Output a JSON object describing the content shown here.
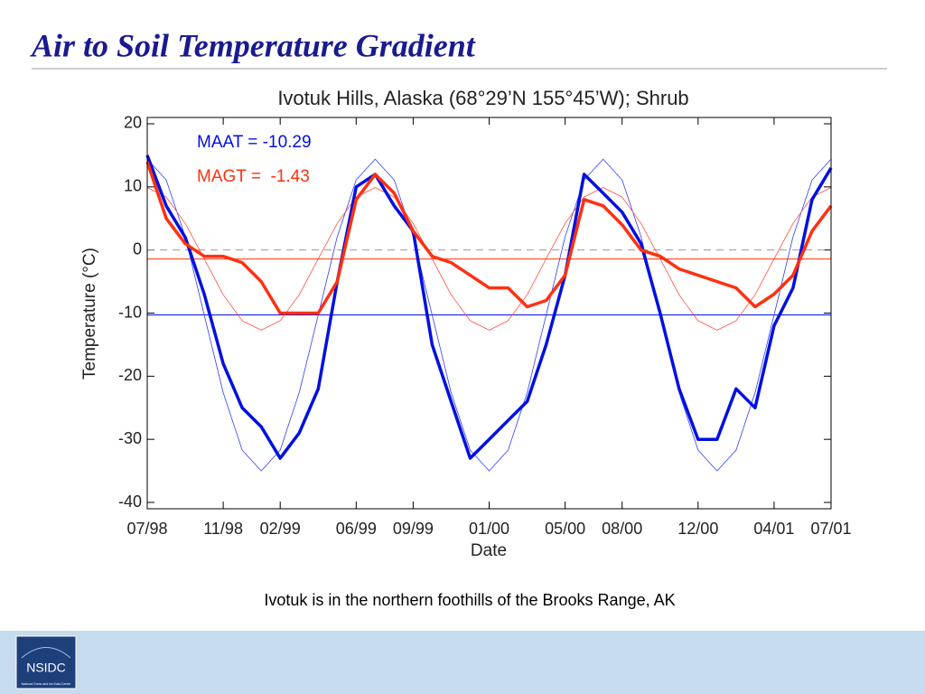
{
  "header": {
    "title": "Air to Soil Temperature Gradient"
  },
  "chart_data": {
    "type": "line",
    "title": "Ivotuk Hills, Alaska (68°29’N 155°45’W); Shrub",
    "x_label": "Date",
    "y_label": "Temperature (°C)",
    "x": [
      "1998-07",
      "1998-08",
      "1998-09",
      "1998-10",
      "1998-11",
      "1998-12",
      "1999-01",
      "1999-02",
      "1999-03",
      "1999-04",
      "1999-05",
      "1999-06",
      "1999-07",
      "1999-08",
      "1999-09",
      "1999-10",
      "1999-11",
      "1999-12",
      "2000-01",
      "2000-02",
      "2000-03",
      "2000-04",
      "2000-05",
      "2000-06",
      "2000-07",
      "2000-08",
      "2000-09",
      "2000-10",
      "2000-11",
      "2000-12",
      "2001-01",
      "2001-02",
      "2001-03",
      "2001-04",
      "2001-05",
      "2001-06",
      "2001-07"
    ],
    "xlim": [
      "1998-07",
      "2001-07"
    ],
    "xticks": [
      {
        "value": "1998-07",
        "label": "07/98"
      },
      {
        "value": "1998-11",
        "label": "11/98"
      },
      {
        "value": "1999-02",
        "label": "02/99"
      },
      {
        "value": "1999-06",
        "label": "06/99"
      },
      {
        "value": "1999-09",
        "label": "09/99"
      },
      {
        "value": "2000-01",
        "label": "01/00"
      },
      {
        "value": "2000-05",
        "label": "05/00"
      },
      {
        "value": "2000-08",
        "label": "08/00"
      },
      {
        "value": "2000-12",
        "label": "12/00"
      },
      {
        "value": "2001-04",
        "label": "04/01"
      },
      {
        "value": "2001-07",
        "label": "07/01"
      }
    ],
    "ylim": [
      -41,
      21
    ],
    "yticks": [
      -40,
      -30,
      -20,
      -10,
      0,
      10,
      20
    ],
    "zero_line": true,
    "series": [
      {
        "color": "#0010e0",
        "values": [
          15,
          7,
          2,
          -7,
          -18,
          -25,
          -28,
          -33,
          -29,
          -22,
          -5,
          10,
          12,
          7,
          3,
          -15,
          -24,
          -33,
          -30,
          -27,
          -24,
          -15,
          -4,
          12,
          9,
          6,
          1,
          -10,
          -22,
          -30,
          -30,
          -22,
          -25,
          -12,
          -6,
          8,
          13
        ]
      },
      {
        "color": "#ff3010",
        "values": [
          14,
          5,
          1,
          -1,
          -1,
          -2,
          -5,
          -10,
          -10,
          -10,
          -5,
          8,
          12,
          9,
          3,
          -1,
          -2,
          -4,
          -6,
          -6,
          -9,
          -8,
          -4,
          8,
          7,
          4,
          0,
          -1,
          -3,
          -4,
          -5,
          -6,
          -9,
          -7,
          -4,
          3,
          7
        ]
      }
    ],
    "fit_series": [
      {
        "color": "#3040ff",
        "values": [
          14.4,
          11.1,
          2.1,
          -10.3,
          -22.6,
          -31.7,
          -35.0,
          -31.7,
          -22.6,
          -10.3,
          2.1,
          11.1,
          14.4,
          11.1,
          2.1,
          -10.3,
          -22.6,
          -31.7,
          -35.0,
          -31.7,
          -22.6,
          -10.3,
          2.1,
          11.1,
          14.4,
          11.1,
          2.1,
          -10.3,
          -22.6,
          -31.7,
          -35.0,
          -31.7,
          -22.6,
          -10.3,
          2.1,
          11.1,
          14.4
        ]
      },
      {
        "color": "#ff5040",
        "values": [
          9.9,
          8.4,
          4.2,
          -1.4,
          -7.1,
          -11.2,
          -12.7,
          -11.2,
          -7.1,
          -1.4,
          4.2,
          8.4,
          9.9,
          8.4,
          4.2,
          -1.4,
          -7.1,
          -11.2,
          -12.7,
          -11.2,
          -7.1,
          -1.4,
          4.2,
          8.4,
          9.9,
          8.4,
          4.2,
          -1.4,
          -7.1,
          -11.2,
          -12.7,
          -11.2,
          -7.1,
          -1.4,
          4.2,
          8.4,
          9.9
        ]
      }
    ],
    "reference_lines": [
      {
        "value": -10.29,
        "label": "MAAT = -10.29",
        "color": "#0010e0"
      },
      {
        "value": -1.43,
        "label": "MAGT =  -1.43",
        "color": "#ff3010"
      }
    ]
  },
  "caption": "Ivotuk is in the northern foothills of the Brooks Range, AK",
  "footer": {
    "logo": "NSIDC",
    "logo_subtitle": "National Snow and Ice Data Center"
  }
}
